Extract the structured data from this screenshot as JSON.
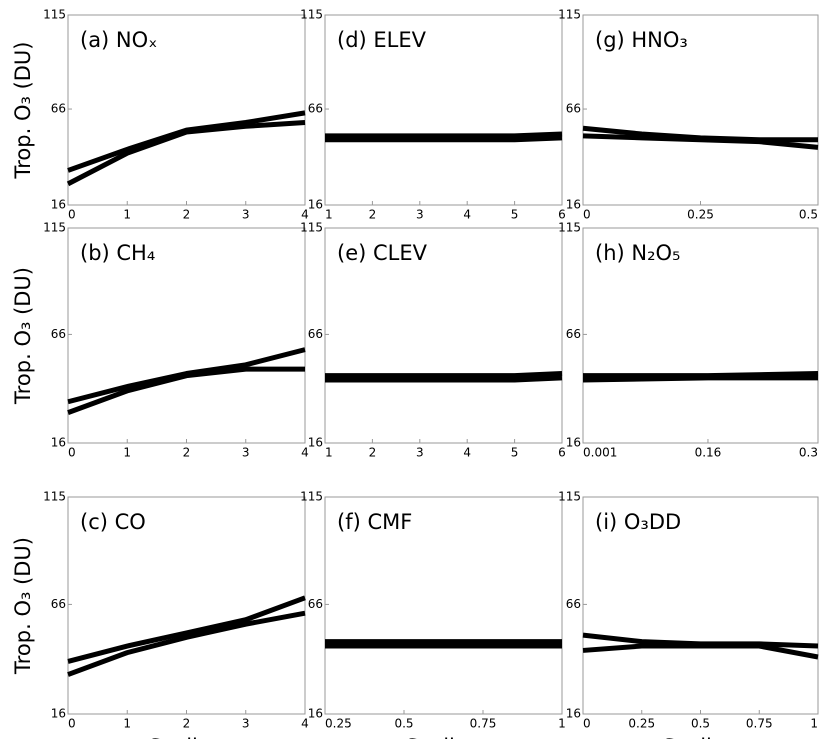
{
  "chart_data": [
    {
      "type": "line",
      "title": "(a) NOₓ",
      "ylabel": "Trop. O₃ (DU)",
      "x": [
        0,
        1,
        2,
        3,
        4
      ],
      "xlim": [
        0,
        4
      ],
      "xticks": [
        0,
        1,
        2,
        3,
        4
      ],
      "ylim": [
        16,
        115
      ],
      "yticks": [
        16,
        66,
        115
      ],
      "series": [
        {
          "color": "#000000",
          "values": [
            34,
            45,
            55,
            59,
            64
          ]
        },
        {
          "color": "#000000",
          "values": [
            27,
            43,
            54,
            57,
            59
          ]
        }
      ]
    },
    {
      "type": "line",
      "title": "(d) ELEV",
      "x": [
        1,
        2,
        3,
        4,
        5,
        6
      ],
      "xlim": [
        1,
        6
      ],
      "xticks": [
        1,
        2,
        3,
        4,
        5,
        6
      ],
      "ylim": [
        16,
        115
      ],
      "yticks": [
        16,
        66,
        115
      ],
      "series": [
        {
          "color": "#000000",
          "values": [
            52,
            52,
            52,
            52,
            52,
            53
          ]
        },
        {
          "color": "#000000",
          "values": [
            50,
            50,
            50,
            50,
            50,
            51
          ]
        }
      ]
    },
    {
      "type": "line",
      "title": "(g) HNO₃",
      "x": [
        0,
        0.125,
        0.25,
        0.375,
        0.5
      ],
      "xlim": [
        0,
        0.5
      ],
      "xticks": [
        0,
        0.25,
        0.5
      ],
      "ylim": [
        16,
        115
      ],
      "yticks": [
        16,
        66,
        115
      ],
      "series": [
        {
          "color": "#000000",
          "values": [
            56,
            53,
            51,
            50,
            50
          ]
        },
        {
          "color": "#000000",
          "values": [
            52,
            51,
            50,
            49,
            46
          ]
        }
      ]
    },
    {
      "type": "line",
      "title": "(b) CH₄",
      "ylabel": "Trop. O₃ (DU)",
      "x": [
        0,
        1,
        2,
        3,
        4
      ],
      "xlim": [
        0,
        4
      ],
      "xticks": [
        0,
        1,
        2,
        3,
        4
      ],
      "ylim": [
        16,
        115
      ],
      "yticks": [
        16,
        66,
        115
      ],
      "series": [
        {
          "color": "#000000",
          "values": [
            35,
            42,
            48,
            52,
            59
          ]
        },
        {
          "color": "#000000",
          "values": [
            30,
            40,
            47,
            50,
            50
          ]
        }
      ]
    },
    {
      "type": "line",
      "title": "(e) CLEV",
      "x": [
        1,
        2,
        3,
        4,
        5,
        6
      ],
      "xlim": [
        1,
        6
      ],
      "xticks": [
        1,
        2,
        3,
        4,
        5,
        6
      ],
      "ylim": [
        16,
        115
      ],
      "yticks": [
        16,
        66,
        115
      ],
      "series": [
        {
          "color": "#000000",
          "values": [
            47,
            47,
            47,
            47,
            47,
            48
          ]
        },
        {
          "color": "#000000",
          "values": [
            45,
            45,
            45,
            45,
            45,
            46
          ]
        }
      ]
    },
    {
      "type": "line",
      "title": "(h) N₂O₅",
      "x": [
        0.001,
        0.16,
        0.3
      ],
      "xlim": [
        0.001,
        0.3
      ],
      "xticks": [
        0.001,
        0.16,
        0.3
      ],
      "ylim": [
        16,
        115
      ],
      "yticks": [
        16,
        66,
        115
      ],
      "series": [
        {
          "color": "#000000",
          "values": [
            47,
            47,
            48
          ]
        },
        {
          "color": "#000000",
          "values": [
            45,
            46,
            46
          ]
        }
      ]
    },
    {
      "type": "line",
      "title": "(c) CO",
      "ylabel": "Trop. O₃ (DU)",
      "xlabel": "Scaling",
      "x": [
        0,
        1,
        2,
        3,
        4
      ],
      "xlim": [
        0,
        4
      ],
      "xticks": [
        0,
        1,
        2,
        3,
        4
      ],
      "ylim": [
        16,
        115
      ],
      "yticks": [
        16,
        66,
        115
      ],
      "series": [
        {
          "color": "#000000",
          "values": [
            40,
            47,
            53,
            59,
            69
          ]
        },
        {
          "color": "#000000",
          "values": [
            34,
            44,
            51,
            57,
            62
          ]
        }
      ]
    },
    {
      "type": "line",
      "title": "(f) CMF",
      "xlabel": "Scaling",
      "x": [
        0.25,
        0.5,
        0.75,
        1
      ],
      "xlim": [
        0.25,
        1
      ],
      "xticks": [
        0.25,
        0.5,
        0.75,
        1
      ],
      "ylim": [
        16,
        115
      ],
      "yticks": [
        16,
        66,
        115
      ],
      "series": [
        {
          "color": "#000000",
          "values": [
            49,
            49,
            49,
            49
          ]
        },
        {
          "color": "#000000",
          "values": [
            47,
            47,
            47,
            47
          ]
        }
      ]
    },
    {
      "type": "line",
      "title": "(i) O₃DD",
      "xlabel": "Scaling",
      "x": [
        0,
        0.25,
        0.5,
        0.75,
        1
      ],
      "xlim": [
        0,
        1
      ],
      "xticks": [
        0,
        0.25,
        0.5,
        0.75,
        1
      ],
      "ylim": [
        16,
        115
      ],
      "yticks": [
        16,
        66,
        115
      ],
      "series": [
        {
          "color": "#000000",
          "values": [
            52,
            49,
            48,
            48,
            47
          ]
        },
        {
          "color": "#000000",
          "values": [
            45,
            47,
            47,
            47,
            42
          ]
        }
      ]
    }
  ]
}
